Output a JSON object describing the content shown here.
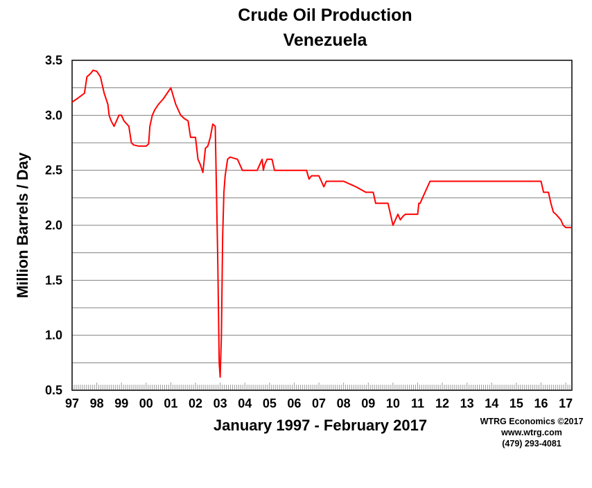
{
  "chart_data": {
    "type": "line",
    "title": "Crude Oil Production",
    "subtitle": "Venezuela",
    "xlabel": "January 1997 - February 2017",
    "ylabel": "Million Barrels / Day",
    "xlim": [
      1997.0,
      2017.25
    ],
    "ylim": [
      0.5,
      3.5
    ],
    "y_ticks": [
      0.5,
      1.0,
      1.5,
      2.0,
      2.5,
      3.0,
      3.5
    ],
    "y_tick_labels": [
      "0.5",
      "1.0",
      "1.5",
      "2.0",
      "2.5",
      "3.0",
      "3.5"
    ],
    "x_ticks": [
      1997,
      1998,
      1999,
      2000,
      2001,
      2002,
      2003,
      2004,
      2005,
      2006,
      2007,
      2008,
      2009,
      2010,
      2011,
      2012,
      2013,
      2014,
      2015,
      2016,
      2017
    ],
    "x_tick_labels": [
      "97",
      "98",
      "99",
      "00",
      "01",
      "02",
      "03",
      "04",
      "05",
      "06",
      "07",
      "08",
      "09",
      "10",
      "11",
      "12",
      "13",
      "14",
      "15",
      "16",
      "17"
    ],
    "grid": true,
    "legend": "none",
    "colors": {
      "line": "#ff0000",
      "grid": "#808080"
    },
    "series": [
      {
        "x": [
          1997.0,
          1997.2,
          1997.5,
          1997.6,
          1997.75,
          1997.85,
          1998.0,
          1998.15,
          1998.3,
          1998.45,
          1998.5,
          1998.58,
          1998.7,
          1998.8,
          1998.9,
          1999.0,
          1999.1,
          1999.3,
          1999.4,
          1999.5,
          1999.7,
          2000.0,
          2000.1,
          2000.15,
          2000.25,
          2000.35,
          2000.5,
          2000.7,
          2000.85,
          2001.0,
          2001.2,
          2001.4,
          2001.55,
          2001.7,
          2001.8,
          2002.0,
          2002.1,
          2002.2,
          2002.3,
          2002.4,
          2002.5,
          2002.6,
          2002.7,
          2002.8,
          2002.9,
          2002.96,
          2003.0,
          2003.05,
          2003.1,
          2003.15,
          2003.2,
          2003.3,
          2003.4,
          2003.7,
          2003.9,
          2004.5,
          2004.7,
          2004.75,
          2004.8,
          2004.9,
          2005.1,
          2005.2,
          2006.0,
          2006.5,
          2006.6,
          2006.7,
          2007.0,
          2007.1,
          2007.2,
          2007.3,
          2007.5,
          2008.0,
          2008.5,
          2008.9,
          2009.2,
          2009.3,
          2009.8,
          2010.0,
          2010.1,
          2010.2,
          2010.3,
          2010.4,
          2010.5,
          2011.0,
          2011.05,
          2011.1,
          2011.5,
          2016.0,
          2016.1,
          2016.3,
          2016.4,
          2016.5,
          2016.6,
          2016.8,
          2016.9,
          2017.0,
          2017.25
        ],
        "y": [
          3.12,
          3.15,
          3.2,
          3.35,
          3.38,
          3.41,
          3.4,
          3.35,
          3.2,
          3.1,
          3.0,
          2.95,
          2.9,
          2.95,
          3.0,
          3.0,
          2.95,
          2.9,
          2.75,
          2.73,
          2.72,
          2.72,
          2.74,
          2.9,
          3.0,
          3.05,
          3.1,
          3.15,
          3.2,
          3.25,
          3.1,
          3.0,
          2.97,
          2.95,
          2.8,
          2.8,
          2.6,
          2.55,
          2.48,
          2.7,
          2.72,
          2.8,
          2.92,
          2.9,
          1.7,
          0.75,
          0.62,
          1.0,
          1.9,
          2.3,
          2.45,
          2.6,
          2.62,
          2.6,
          2.5,
          2.5,
          2.6,
          2.5,
          2.55,
          2.6,
          2.6,
          2.5,
          2.5,
          2.5,
          2.42,
          2.45,
          2.45,
          2.4,
          2.35,
          2.4,
          2.4,
          2.4,
          2.35,
          2.3,
          2.3,
          2.2,
          2.2,
          2.0,
          2.05,
          2.1,
          2.05,
          2.08,
          2.1,
          2.1,
          2.2,
          2.2,
          2.4,
          2.4,
          2.3,
          2.3,
          2.2,
          2.12,
          2.1,
          2.05,
          2.0,
          1.98,
          1.98
        ]
      }
    ],
    "credits": [
      "WTRG Economics  ©2017",
      "www.wtrg.com",
      "(479) 293-4081"
    ]
  }
}
